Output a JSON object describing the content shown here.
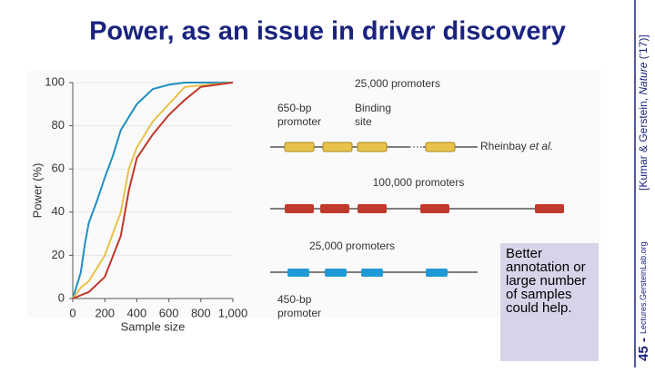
{
  "slide": {
    "title": "Power, as an issue in driver discovery",
    "citation": [
      "[Kumar & Gerstein, ",
      "Nature",
      " ('17)]"
    ],
    "page_number": "45",
    "footer": "Lectures.GersteinLab.org",
    "note": [
      "Better",
      "annotation or",
      "large number",
      "of samples",
      "could help."
    ]
  },
  "diagram": {
    "row1_label": "25,000 promoters",
    "promoter_label": [
      "650-bp",
      "promoter"
    ],
    "site_label": [
      "Binding",
      "site"
    ],
    "source": [
      "Rheinbay ",
      "et al."
    ],
    "row2_label": "100,000 promoters",
    "row3_label": "25,000 promoters",
    "promoter2_label": [
      "450-bp",
      "promoter"
    ]
  },
  "chart_data": {
    "type": "line",
    "xlabel": "Sample size",
    "ylabel": "Power (%)",
    "xlim": [
      0,
      1000
    ],
    "ylim": [
      0,
      100
    ],
    "xticks": [
      0,
      200,
      400,
      600,
      800,
      {
        "value": 1000,
        "label": "1,000"
      }
    ],
    "yticks": [
      0,
      20,
      40,
      60,
      80,
      100
    ],
    "series": [
      {
        "name": "blue",
        "color": "#1f8fc0",
        "x": [
          0,
          50,
          75,
          100,
          150,
          200,
          250,
          300,
          400,
          500,
          600,
          700,
          1000
        ],
        "values": [
          0,
          12,
          25,
          35,
          45,
          56,
          66,
          78,
          90,
          97,
          99,
          100,
          100
        ]
      },
      {
        "name": "yellow",
        "color": "#e8c24a",
        "x": [
          0,
          50,
          100,
          200,
          300,
          350,
          400,
          500,
          600,
          700,
          1000
        ],
        "values": [
          0,
          5,
          8,
          20,
          40,
          60,
          70,
          82,
          90,
          98,
          100
        ]
      },
      {
        "name": "red",
        "color": "#c0392b",
        "x": [
          0,
          100,
          200,
          300,
          350,
          400,
          500,
          600,
          700,
          800,
          1000
        ],
        "values": [
          0,
          3,
          10,
          29,
          50,
          65,
          76,
          85,
          92,
          98,
          100
        ]
      }
    ]
  }
}
